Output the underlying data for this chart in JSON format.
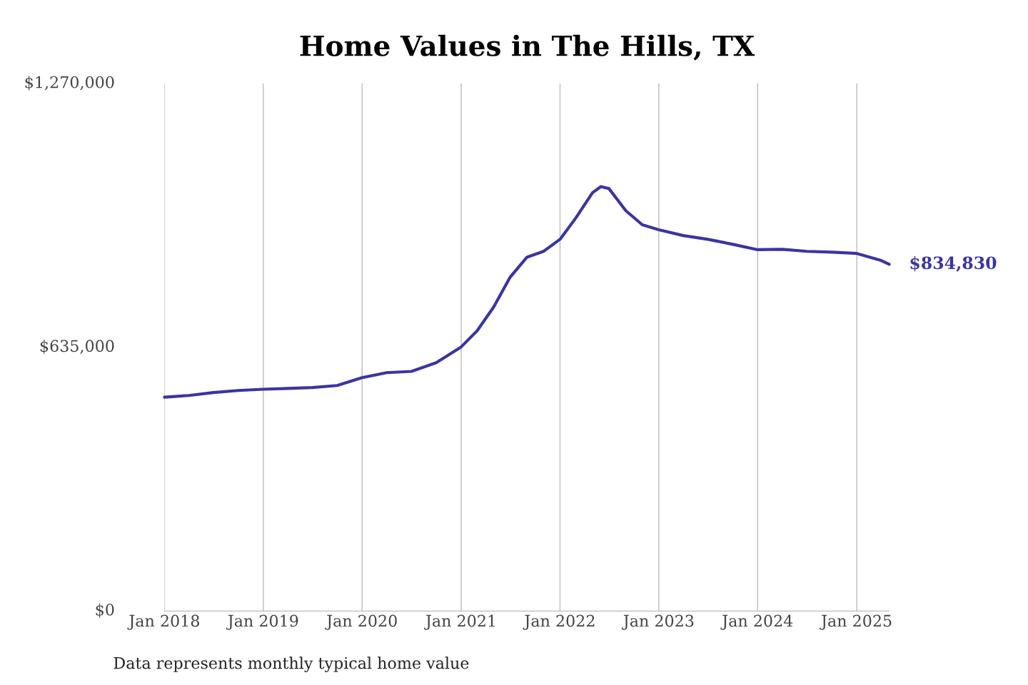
{
  "chart_data": {
    "type": "line",
    "title": "Home Values in The Hills, TX",
    "x": [
      "2018-01",
      "2018-04",
      "2018-07",
      "2018-10",
      "2019-01",
      "2019-04",
      "2019-07",
      "2019-10",
      "2020-01",
      "2020-04",
      "2020-07",
      "2020-10",
      "2021-01",
      "2021-03",
      "2021-05",
      "2021-07",
      "2021-09",
      "2021-11",
      "2022-01",
      "2022-03",
      "2022-05",
      "2022-06",
      "2022-07",
      "2022-09",
      "2022-11",
      "2023-01",
      "2023-04",
      "2023-07",
      "2023-10",
      "2024-01",
      "2024-04",
      "2024-07",
      "2024-10",
      "2025-01",
      "2025-04",
      "2025-05"
    ],
    "series": [
      {
        "color": "#3a35a0",
        "values": [
          515000,
          519000,
          526000,
          531000,
          534000,
          536000,
          538000,
          543000,
          562000,
          574000,
          577000,
          598000,
          636000,
          675000,
          732000,
          804000,
          852000,
          866000,
          895000,
          947000,
          1007000,
          1022000,
          1017000,
          964000,
          930000,
          918000,
          904000,
          895000,
          883000,
          870000,
          871000,
          866000,
          864000,
          861000,
          844000,
          834830
        ]
      }
    ],
    "xlim": [
      "2018-01",
      "2025-05"
    ],
    "ylim": [
      0,
      1270000
    ],
    "yticks": [
      {
        "value": 0,
        "label": "$0"
      },
      {
        "value": 635000,
        "label": "$635,000"
      },
      {
        "value": 1270000,
        "label": "$1,270,000"
      }
    ],
    "xticks": [
      {
        "value": "2018-01",
        "label": "Jan 2018"
      },
      {
        "value": "2019-01",
        "label": "Jan 2019"
      },
      {
        "value": "2020-01",
        "label": "Jan 2020"
      },
      {
        "value": "2021-01",
        "label": "Jan 2021"
      },
      {
        "value": "2022-01",
        "label": "Jan 2022"
      },
      {
        "value": "2023-01",
        "label": "Jan 2023"
      },
      {
        "value": "2024-01",
        "label": "Jan 2024"
      },
      {
        "value": "2025-01",
        "label": "Jan 2025"
      }
    ],
    "grid": "x",
    "annotations": [
      {
        "text": "$834,830",
        "x": "2025-05",
        "y": 834830
      },
      "Data represents monthly typical home value"
    ]
  }
}
